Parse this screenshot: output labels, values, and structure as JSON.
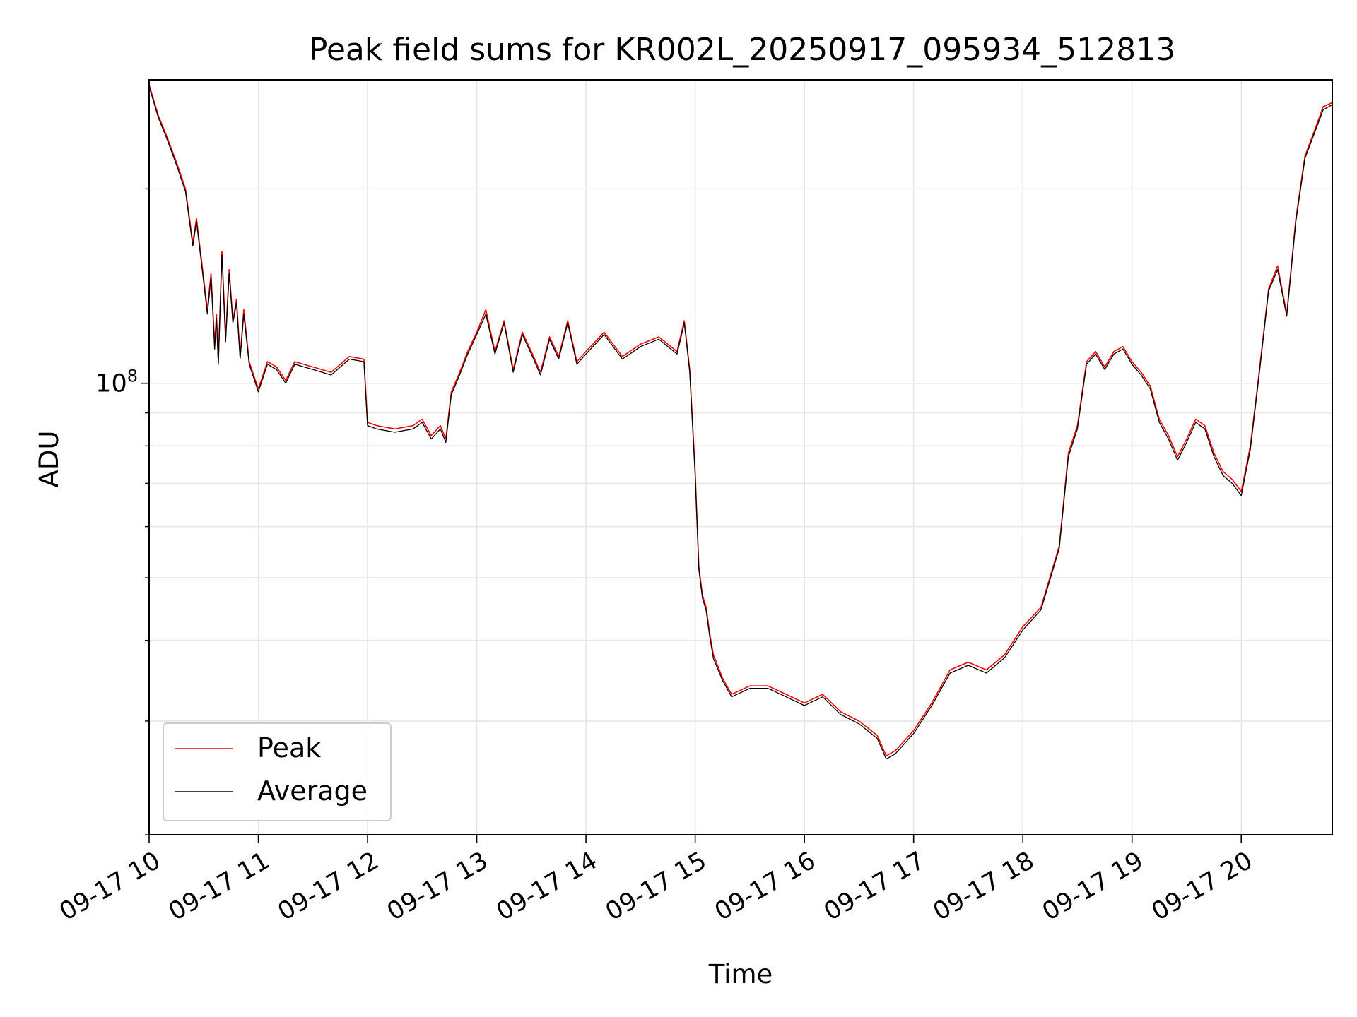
{
  "chart_data": {
    "type": "line",
    "title": "Peak field sums for KR002L_20250917_095934_512813",
    "xlabel": "Time",
    "ylabel": "ADU",
    "yscale": "log",
    "grid": true,
    "legend_position": "lower-left",
    "xlim": [
      "2025-09-17 10:00",
      "2025-09-17 20:50"
    ],
    "ylim": [
      20000000,
      295000000
    ],
    "x_tick_labels": [
      "09-17 10",
      "09-17 11",
      "09-17 12",
      "09-17 13",
      "09-17 14",
      "09-17 15",
      "09-17 16",
      "09-17 17",
      "09-17 18",
      "09-17 19",
      "09-17 20"
    ],
    "y_tick_labels": [
      {
        "base": "10",
        "exp": "8"
      }
    ],
    "x": [
      "2025-09-17 10:00",
      "2025-09-17 10:05",
      "2025-09-17 10:10",
      "2025-09-17 10:15",
      "2025-09-17 10:20",
      "2025-09-17 10:24",
      "2025-09-17 10:26",
      "2025-09-17 10:30",
      "2025-09-17 10:32",
      "2025-09-17 10:34",
      "2025-09-17 10:36",
      "2025-09-17 10:37",
      "2025-09-17 10:38",
      "2025-09-17 10:40",
      "2025-09-17 10:42",
      "2025-09-17 10:44",
      "2025-09-17 10:46",
      "2025-09-17 10:48",
      "2025-09-17 10:50",
      "2025-09-17 10:52",
      "2025-09-17 10:55",
      "2025-09-17 11:00",
      "2025-09-17 11:05",
      "2025-09-17 11:10",
      "2025-09-17 11:15",
      "2025-09-17 11:20",
      "2025-09-17 11:30",
      "2025-09-17 11:40",
      "2025-09-17 11:50",
      "2025-09-17 11:58",
      "2025-09-17 12:00",
      "2025-09-17 12:05",
      "2025-09-17 12:15",
      "2025-09-17 12:25",
      "2025-09-17 12:30",
      "2025-09-17 12:35",
      "2025-09-17 12:40",
      "2025-09-17 12:43",
      "2025-09-17 12:46",
      "2025-09-17 12:50",
      "2025-09-17 12:55",
      "2025-09-17 13:00",
      "2025-09-17 13:05",
      "2025-09-17 13:10",
      "2025-09-17 13:15",
      "2025-09-17 13:20",
      "2025-09-17 13:25",
      "2025-09-17 13:30",
      "2025-09-17 13:35",
      "2025-09-17 13:40",
      "2025-09-17 13:45",
      "2025-09-17 13:50",
      "2025-09-17 13:55",
      "2025-09-17 14:00",
      "2025-09-17 14:10",
      "2025-09-17 14:20",
      "2025-09-17 14:30",
      "2025-09-17 14:40",
      "2025-09-17 14:50",
      "2025-09-17 14:54",
      "2025-09-17 14:57",
      "2025-09-17 15:00",
      "2025-09-17 15:02",
      "2025-09-17 15:04",
      "2025-09-17 15:06",
      "2025-09-17 15:08",
      "2025-09-17 15:10",
      "2025-09-17 15:15",
      "2025-09-17 15:20",
      "2025-09-17 15:30",
      "2025-09-17 15:40",
      "2025-09-17 15:50",
      "2025-09-17 16:00",
      "2025-09-17 16:10",
      "2025-09-17 16:20",
      "2025-09-17 16:30",
      "2025-09-17 16:40",
      "2025-09-17 16:45",
      "2025-09-17 16:50",
      "2025-09-17 17:00",
      "2025-09-17 17:10",
      "2025-09-17 17:20",
      "2025-09-17 17:30",
      "2025-09-17 17:40",
      "2025-09-17 17:50",
      "2025-09-17 18:00",
      "2025-09-17 18:10",
      "2025-09-17 18:20",
      "2025-09-17 18:25",
      "2025-09-17 18:30",
      "2025-09-17 18:35",
      "2025-09-17 18:40",
      "2025-09-17 18:45",
      "2025-09-17 18:50",
      "2025-09-17 18:55",
      "2025-09-17 19:00",
      "2025-09-17 19:05",
      "2025-09-17 19:10",
      "2025-09-17 19:15",
      "2025-09-17 19:20",
      "2025-09-17 19:25",
      "2025-09-17 19:30",
      "2025-09-17 19:35",
      "2025-09-17 19:40",
      "2025-09-17 19:45",
      "2025-09-17 19:50",
      "2025-09-17 19:55",
      "2025-09-17 20:00",
      "2025-09-17 20:05",
      "2025-09-17 20:10",
      "2025-09-17 20:15",
      "2025-09-17 20:20",
      "2025-09-17 20:25",
      "2025-09-17 20:30",
      "2025-09-17 20:35",
      "2025-09-17 20:40",
      "2025-09-17 20:45",
      "2025-09-17 20:50"
    ],
    "series": [
      {
        "name": "Peak",
        "color": "#ff0000",
        "values": [
          290000000,
          260000000,
          240000000,
          220000000,
          200000000,
          165000000,
          180000000,
          145000000,
          130000000,
          148000000,
          115000000,
          128000000,
          108000000,
          160000000,
          118000000,
          150000000,
          125000000,
          135000000,
          110000000,
          130000000,
          108000000,
          98000000,
          108000000,
          106000000,
          101000000,
          108000000,
          106000000,
          104000000,
          110000000,
          109000000,
          87000000,
          86000000,
          85000000,
          86000000,
          88000000,
          83000000,
          86000000,
          82000000,
          97000000,
          103000000,
          112000000,
          120000000,
          130000000,
          112000000,
          125000000,
          105000000,
          120000000,
          112000000,
          104000000,
          118000000,
          110000000,
          125000000,
          108000000,
          112000000,
          120000000,
          110000000,
          115000000,
          118000000,
          112000000,
          125000000,
          105000000,
          73000000,
          52000000,
          47000000,
          45000000,
          41000000,
          38000000,
          35000000,
          33000000,
          34000000,
          34000000,
          33000000,
          32000000,
          33000000,
          31000000,
          30000000,
          28500000,
          26500000,
          27000000,
          29000000,
          32000000,
          36000000,
          37000000,
          36000000,
          38000000,
          42000000,
          45000000,
          56000000,
          78000000,
          86000000,
          108000000,
          112000000,
          106000000,
          112000000,
          114000000,
          108000000,
          104000000,
          99000000,
          88000000,
          83000000,
          77000000,
          82000000,
          88000000,
          86000000,
          78000000,
          73000000,
          71000000,
          68000000,
          80000000,
          105000000,
          140000000,
          152000000,
          128000000,
          180000000,
          225000000,
          245000000,
          268000000,
          272000000
        ]
      },
      {
        "name": "Average",
        "color": "#000000",
        "values": [
          288000000,
          258000000,
          238000000,
          218000000,
          198000000,
          163000000,
          178000000,
          143000000,
          128000000,
          146000000,
          113000000,
          126000000,
          107000000,
          158000000,
          116000000,
          148000000,
          124000000,
          133000000,
          109000000,
          128000000,
          107000000,
          97000000,
          107000000,
          105000000,
          100000000,
          107000000,
          105000000,
          103000000,
          109000000,
          108000000,
          86000000,
          85000000,
          84000000,
          85000000,
          87000000,
          82000000,
          85000000,
          81000000,
          96000000,
          102000000,
          111000000,
          119000000,
          128000000,
          111000000,
          124000000,
          104000000,
          119000000,
          111000000,
          103000000,
          117000000,
          109000000,
          124000000,
          107000000,
          111000000,
          119000000,
          109000000,
          114000000,
          117000000,
          111000000,
          124000000,
          104000000,
          72000000,
          51500000,
          46500000,
          44500000,
          40500000,
          37500000,
          34700000,
          32700000,
          33700000,
          33700000,
          32700000,
          31700000,
          32700000,
          30700000,
          29700000,
          28200000,
          26200000,
          26700000,
          28700000,
          31700000,
          35600000,
          36600000,
          35600000,
          37600000,
          41500000,
          44600000,
          55500000,
          77000000,
          85000000,
          107000000,
          111000000,
          105000000,
          111000000,
          113000000,
          107000000,
          103000000,
          98000000,
          87000000,
          82000000,
          76000000,
          81000000,
          87000000,
          85000000,
          77000000,
          72000000,
          70000000,
          67000000,
          79000000,
          104000000,
          139000000,
          150000000,
          127000000,
          178000000,
          223000000,
          243000000,
          265000000,
          270000000
        ]
      }
    ]
  }
}
